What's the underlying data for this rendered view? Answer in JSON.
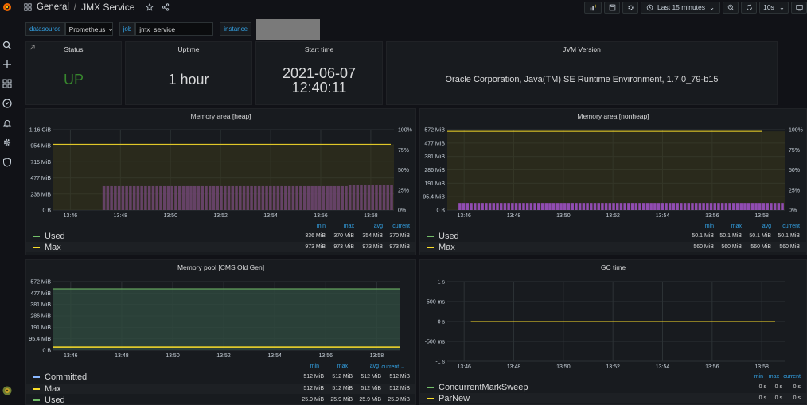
{
  "breadcrumb": {
    "folder": "General",
    "separator": "/",
    "title": "JMX Service"
  },
  "time_picker": {
    "label": "Last 15 minutes"
  },
  "refresh": {
    "interval": "10s"
  },
  "variables": [
    {
      "label": "datasource",
      "value": "Prometheus"
    },
    {
      "label": "job",
      "value": "jmx_service"
    },
    {
      "label": "instance",
      "value": ""
    }
  ],
  "stats": {
    "status": {
      "title": "Status",
      "value": "UP",
      "color": "#37872d"
    },
    "uptime": {
      "title": "Uptime",
      "value": "1 hour"
    },
    "start": {
      "title": "Start time",
      "date": "2021-06-07",
      "time": "12:40:11"
    },
    "jvm": {
      "title": "JVM Version",
      "value": "Oracle Corporation, Java(TM) SE Runtime Environment, 1.7.0_79-b15"
    }
  },
  "colors": {
    "used": "#73bf69",
    "max": "#fade2a",
    "committed": "#8ab8ff",
    "heap_fill": "#a352cc",
    "pool_fill": "#2f4a3f"
  },
  "legend_headers": {
    "min": "min",
    "max": "max",
    "avg": "avg",
    "current": "current",
    "current_sort": "current ⌄"
  },
  "heap": {
    "title": "Memory area [heap]",
    "y_ticks": [
      "1.16 GiB",
      "954 MiB",
      "715 MiB",
      "477 MiB",
      "238 MiB",
      "0 B"
    ],
    "y_right_ticks": [
      "100%",
      "75%",
      "50%",
      "25%",
      "0%"
    ],
    "x_ticks": [
      "13:46",
      "13:48",
      "13:50",
      "13:52",
      "13:54",
      "13:56",
      "13:58"
    ],
    "legend": [
      {
        "name": "Used",
        "min": "336 MiB",
        "max": "370 MiB",
        "avg": "354 MiB",
        "current": "370 MiB"
      },
      {
        "name": "Max",
        "min": "973 MiB",
        "max": "973 MiB",
        "avg": "973 MiB",
        "current": "973 MiB"
      }
    ]
  },
  "nonheap": {
    "title": "Memory area [nonheap]",
    "y_ticks": [
      "572 MiB",
      "477 MiB",
      "381 MiB",
      "286 MiB",
      "191 MiB",
      "95.4 MiB",
      "0 B"
    ],
    "y_right_ticks": [
      "100%",
      "75%",
      "50%",
      "25%",
      "0%"
    ],
    "x_ticks": [
      "13:46",
      "13:48",
      "13:50",
      "13:52",
      "13:54",
      "13:56",
      "13:58"
    ],
    "legend": [
      {
        "name": "Used",
        "min": "50.1 MiB",
        "max": "50.1 MiB",
        "avg": "50.1 MiB",
        "current": "50.1 MiB"
      },
      {
        "name": "Max",
        "min": "560 MiB",
        "max": "560 MiB",
        "avg": "560 MiB",
        "current": "560 MiB"
      }
    ]
  },
  "pool": {
    "title": "Memory pool [CMS Old Gen]",
    "y_ticks": [
      "572 MiB",
      "477 MiB",
      "381 MiB",
      "286 MiB",
      "191 MiB",
      "95.4 MiB",
      "0 B"
    ],
    "x_ticks": [
      "13:46",
      "13:48",
      "13:50",
      "13:52",
      "13:54",
      "13:56",
      "13:58"
    ],
    "legend": [
      {
        "name": "Committed",
        "min": "512 MiB",
        "max": "512 MiB",
        "avg": "512 MiB",
        "current": "512 MiB"
      },
      {
        "name": "Max",
        "min": "512 MiB",
        "max": "512 MiB",
        "avg": "512 MiB",
        "current": "512 MiB"
      },
      {
        "name": "Used",
        "min": "25.9 MiB",
        "max": "25.9 MiB",
        "avg": "25.9 MiB",
        "current": "25.9 MiB"
      }
    ]
  },
  "gc": {
    "title": "GC time",
    "y_ticks": [
      "1 s",
      "500 ms",
      "0 s",
      "-500 ms",
      "-1 s"
    ],
    "x_ticks": [
      "13:46",
      "13:48",
      "13:50",
      "13:52",
      "13:54",
      "13:56",
      "13:58"
    ],
    "legend": [
      {
        "name": "ConcurrentMarkSweep",
        "min": "0 s",
        "max": "0 s",
        "current": "0 s"
      },
      {
        "name": "ParNew",
        "min": "0 s",
        "max": "0 s",
        "current": "0 s"
      }
    ]
  },
  "chart_data": [
    {
      "type": "bar",
      "title": "Memory area [heap]",
      "x": [
        "13:46",
        "13:48",
        "13:50",
        "13:52",
        "13:54",
        "13:56",
        "13:58"
      ],
      "series": [
        {
          "name": "Used",
          "unit": "MiB",
          "values": [
            354,
            354,
            354,
            354,
            354,
            354,
            370
          ]
        },
        {
          "name": "Max",
          "unit": "MiB",
          "values": [
            973,
            973,
            973,
            973,
            973,
            973,
            973
          ]
        }
      ],
      "ylim": [
        0,
        1190
      ]
    },
    {
      "type": "bar",
      "title": "Memory area [nonheap]",
      "x": [
        "13:46",
        "13:48",
        "13:50",
        "13:52",
        "13:54",
        "13:56",
        "13:58"
      ],
      "series": [
        {
          "name": "Used",
          "unit": "MiB",
          "values": [
            50.1,
            50.1,
            50.1,
            50.1,
            50.1,
            50.1,
            50.1
          ]
        },
        {
          "name": "Max",
          "unit": "MiB",
          "values": [
            560,
            560,
            560,
            560,
            560,
            560,
            560
          ]
        }
      ],
      "ylim": [
        0,
        572
      ]
    },
    {
      "type": "area",
      "title": "Memory pool [CMS Old Gen]",
      "x": [
        "13:46",
        "13:48",
        "13:50",
        "13:52",
        "13:54",
        "13:56",
        "13:58"
      ],
      "series": [
        {
          "name": "Committed",
          "unit": "MiB",
          "values": [
            512,
            512,
            512,
            512,
            512,
            512,
            512
          ]
        },
        {
          "name": "Max",
          "unit": "MiB",
          "values": [
            512,
            512,
            512,
            512,
            512,
            512,
            512
          ]
        },
        {
          "name": "Used",
          "unit": "MiB",
          "values": [
            25.9,
            25.9,
            25.9,
            25.9,
            25.9,
            25.9,
            25.9
          ]
        }
      ],
      "ylim": [
        0,
        572
      ]
    },
    {
      "type": "line",
      "title": "GC time",
      "x": [
        "13:46",
        "13:48",
        "13:50",
        "13:52",
        "13:54",
        "13:56",
        "13:58"
      ],
      "series": [
        {
          "name": "ConcurrentMarkSweep",
          "unit": "s",
          "values": [
            0,
            0,
            0,
            0,
            0,
            0,
            0
          ]
        },
        {
          "name": "ParNew",
          "unit": "s",
          "values": [
            0,
            0,
            0,
            0,
            0,
            0,
            0
          ]
        }
      ],
      "ylim": [
        -1,
        1
      ]
    }
  ]
}
